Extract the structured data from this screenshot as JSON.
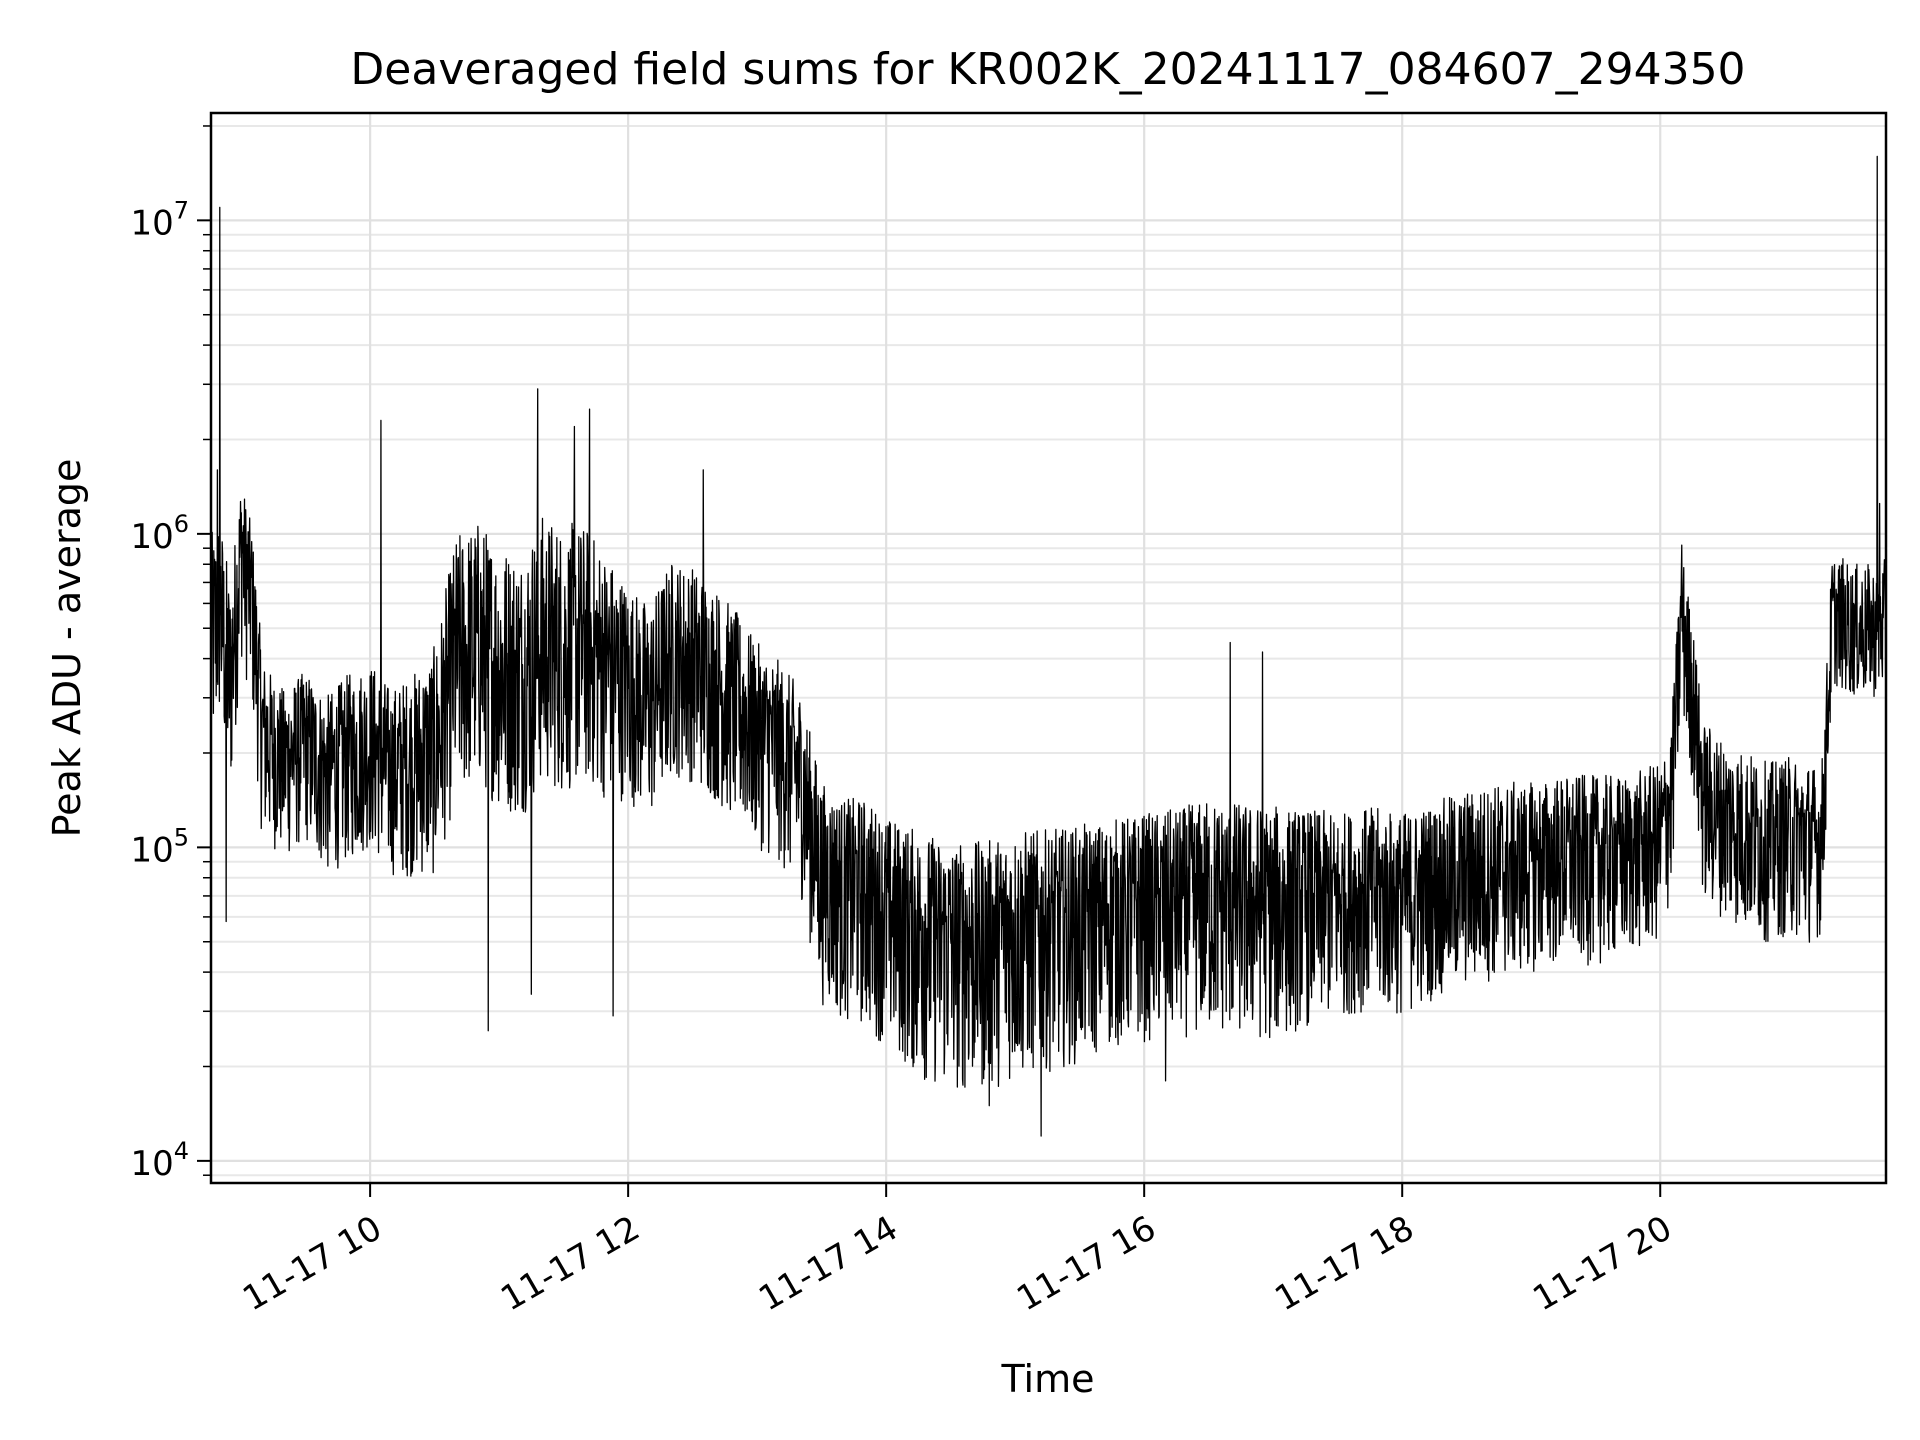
{
  "chart_data": {
    "type": "line",
    "title": "Deaveraged field sums for KR002K_20241117_084607_294350",
    "xlabel": "Time",
    "ylabel": "Peak ADU - average",
    "yscale": "log",
    "ylim": [
      8500,
      22000000
    ],
    "xlim": [
      "2024-11-17 08:46",
      "2024-11-17 21:45"
    ],
    "grid": true,
    "line_color": "#000000",
    "x_ticks": [
      {
        "value": "2024-11-17 10:00",
        "label": "11-17 10"
      },
      {
        "value": "2024-11-17 12:00",
        "label": "11-17 12"
      },
      {
        "value": "2024-11-17 14:00",
        "label": "11-17 14"
      },
      {
        "value": "2024-11-17 16:00",
        "label": "11-17 16"
      },
      {
        "value": "2024-11-17 18:00",
        "label": "11-17 18"
      },
      {
        "value": "2024-11-17 20:00",
        "label": "11-17 20"
      }
    ],
    "y_ticks": [
      {
        "value": 10000,
        "base": "10",
        "exp": "4"
      },
      {
        "value": 100000,
        "base": "10",
        "exp": "5"
      },
      {
        "value": 1000000,
        "base": "10",
        "exp": "6"
      },
      {
        "value": 10000000,
        "base": "10",
        "exp": "7"
      }
    ],
    "series": [
      {
        "x": [
          "2024-11-17 08:46",
          "2024-11-17 08:50",
          "2024-11-17 08:55",
          "2024-11-17 09:00",
          "2024-11-17 09:05",
          "2024-11-17 09:10",
          "2024-11-17 09:15",
          "2024-11-17 09:20",
          "2024-11-17 09:30",
          "2024-11-17 09:40",
          "2024-11-17 09:50",
          "2024-11-17 10:00",
          "2024-11-17 10:10",
          "2024-11-17 10:20",
          "2024-11-17 10:30",
          "2024-11-17 10:40",
          "2024-11-17 10:50",
          "2024-11-17 11:00",
          "2024-11-17 11:10",
          "2024-11-17 11:20",
          "2024-11-17 11:30",
          "2024-11-17 11:40",
          "2024-11-17 11:50",
          "2024-11-17 12:00",
          "2024-11-17 12:10",
          "2024-11-17 12:20",
          "2024-11-17 12:30",
          "2024-11-17 12:40",
          "2024-11-17 12:50",
          "2024-11-17 13:00",
          "2024-11-17 13:10",
          "2024-11-17 13:20",
          "2024-11-17 13:30",
          "2024-11-17 13:40",
          "2024-11-17 13:50",
          "2024-11-17 14:00",
          "2024-11-17 14:15",
          "2024-11-17 14:30",
          "2024-11-17 14:45",
          "2024-11-17 15:00",
          "2024-11-17 15:15",
          "2024-11-17 15:30",
          "2024-11-17 15:45",
          "2024-11-17 16:00",
          "2024-11-17 16:15",
          "2024-11-17 16:30",
          "2024-11-17 16:45",
          "2024-11-17 17:00",
          "2024-11-17 17:15",
          "2024-11-17 17:30",
          "2024-11-17 17:45",
          "2024-11-17 18:00",
          "2024-11-17 18:15",
          "2024-11-17 18:30",
          "2024-11-17 18:45",
          "2024-11-17 19:00",
          "2024-11-17 19:15",
          "2024-11-17 19:30",
          "2024-11-17 19:45",
          "2024-11-17 20:00",
          "2024-11-17 20:05",
          "2024-11-17 20:10",
          "2024-11-17 20:15",
          "2024-11-17 20:20",
          "2024-11-17 20:30",
          "2024-11-17 20:40",
          "2024-11-17 20:50",
          "2024-11-17 21:00",
          "2024-11-17 21:10",
          "2024-11-17 21:15",
          "2024-11-17 21:20",
          "2024-11-17 21:30",
          "2024-11-17 21:40",
          "2024-11-17 21:45"
        ],
        "y": [
          450000,
          600000,
          350000,
          1000000,
          700000,
          250000,
          220000,
          200000,
          230000,
          180000,
          200000,
          220000,
          180000,
          200000,
          200000,
          400000,
          450000,
          380000,
          350000,
          450000,
          420000,
          450000,
          400000,
          350000,
          300000,
          420000,
          400000,
          350000,
          300000,
          250000,
          220000,
          180000,
          90000,
          80000,
          80000,
          70000,
          60000,
          55000,
          55000,
          60000,
          60000,
          62000,
          65000,
          68000,
          70000,
          72000,
          70000,
          68000,
          70000,
          72000,
          75000,
          72000,
          78000,
          85000,
          90000,
          95000,
          100000,
          100000,
          100000,
          110000,
          150000,
          600000,
          350000,
          150000,
          130000,
          120000,
          110000,
          115000,
          110000,
          105000,
          550000,
          500000,
          500000,
          520000
        ],
        "noise_low": [
          0.4,
          0.4,
          0.4,
          0.4,
          0.4,
          0.4,
          0.45,
          0.45,
          0.45,
          0.45,
          0.45,
          0.45,
          0.45,
          0.4,
          0.4,
          0.35,
          0.35,
          0.35,
          0.35,
          0.35,
          0.35,
          0.35,
          0.35,
          0.4,
          0.4,
          0.4,
          0.4,
          0.4,
          0.4,
          0.4,
          0.4,
          0.4,
          0.35,
          0.35,
          0.33,
          0.33,
          0.3,
          0.3,
          0.3,
          0.3,
          0.32,
          0.33,
          0.35,
          0.35,
          0.35,
          0.35,
          0.35,
          0.35,
          0.38,
          0.4,
          0.4,
          0.4,
          0.42,
          0.42,
          0.42,
          0.42,
          0.42,
          0.42,
          0.45,
          0.45,
          0.45,
          0.45,
          0.45,
          0.45,
          0.45,
          0.45,
          0.45,
          0.45,
          0.45,
          0.5,
          0.6,
          0.6,
          0.6,
          0.6
        ],
        "noise_high": [
          2.2,
          2.0,
          2.0,
          1.5,
          1.5,
          1.6,
          1.6,
          1.6,
          1.6,
          1.7,
          1.8,
          1.8,
          1.8,
          1.8,
          2.2,
          2.5,
          2.5,
          2.5,
          2.6,
          2.6,
          2.6,
          2.4,
          2.2,
          2.0,
          2.0,
          2.0,
          2.0,
          2.0,
          1.9,
          1.8,
          1.8,
          1.8,
          1.8,
          1.8,
          1.8,
          1.8,
          1.9,
          1.9,
          1.9,
          1.9,
          1.9,
          1.9,
          1.9,
          1.9,
          1.9,
          2.0,
          2.0,
          2.0,
          1.9,
          1.8,
          1.8,
          1.8,
          1.8,
          1.8,
          1.8,
          1.7,
          1.7,
          1.7,
          1.7,
          1.7,
          1.6,
          1.5,
          1.5,
          1.7,
          1.7,
          1.7,
          1.7,
          1.7,
          1.7,
          1.7,
          1.6,
          1.6,
          1.6,
          1.6
        ],
        "spikes": [
          {
            "x": "2024-11-17 08:50",
            "y": 11000000
          },
          {
            "x": "2024-11-17 08:49",
            "y": 1600000
          },
          {
            "x": "2024-11-17 08:53",
            "y": 58000
          },
          {
            "x": "2024-11-17 10:05",
            "y": 2300000
          },
          {
            "x": "2024-11-17 10:55",
            "y": 26000
          },
          {
            "x": "2024-11-17 11:15",
            "y": 34000
          },
          {
            "x": "2024-11-17 11:18",
            "y": 2900000
          },
          {
            "x": "2024-11-17 11:35",
            "y": 2200000
          },
          {
            "x": "2024-11-17 11:42",
            "y": 2500000
          },
          {
            "x": "2024-11-17 11:53",
            "y": 29000
          },
          {
            "x": "2024-11-17 12:35",
            "y": 1600000
          },
          {
            "x": "2024-11-17 14:48",
            "y": 15000
          },
          {
            "x": "2024-11-17 15:12",
            "y": 12000
          },
          {
            "x": "2024-11-17 16:10",
            "y": 18000
          },
          {
            "x": "2024-11-17 16:40",
            "y": 450000
          },
          {
            "x": "2024-11-17 16:55",
            "y": 420000
          },
          {
            "x": "2024-11-17 20:10",
            "y": 920000
          },
          {
            "x": "2024-11-17 21:41",
            "y": 16000000
          },
          {
            "x": "2024-11-17 21:42",
            "y": 1250000
          }
        ]
      }
    ]
  }
}
